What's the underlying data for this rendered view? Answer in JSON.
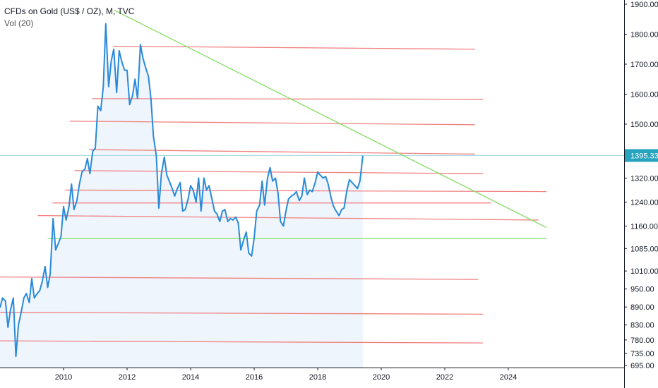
{
  "legend": {
    "title": "CFDs on Gold (US$ / OZ), M, TVC",
    "indicator": "Vol (20)"
  },
  "colors": {
    "price_line": "#2a8ad8",
    "area_fill": "#eef5fd",
    "resistance": "#f08080",
    "trend": "#86dd66",
    "last_price_line": "#9fd4e0",
    "price_tag": "#25a3bf",
    "axis": "#131722"
  },
  "chart_data": {
    "type": "line",
    "title": "CFDs on Gold (US$ / OZ), M, TVC",
    "xlabel": "",
    "ylabel": "",
    "xlim": [
      2008.0,
      2025.2
    ],
    "ylim": [
      695,
      1900
    ],
    "y_ticks": [
      695,
      735,
      780,
      830,
      890,
      950,
      1010,
      1085,
      1160,
      1240,
      1320,
      1395.33,
      1500,
      1600,
      1700,
      1800,
      1900
    ],
    "y_tick_labels": [
      "695.00",
      "735.00",
      "780.00",
      "830.00",
      "890.00",
      "950.00",
      "1010.00",
      "1085.00",
      "1160.00",
      "1240.00",
      "1320.00",
      "1395.33",
      "1500.00",
      "1600.00",
      "1700.00",
      "1800.00",
      "1900.00"
    ],
    "x_ticks": [
      2010,
      2012,
      2014,
      2016,
      2018,
      2020,
      2022,
      2024
    ],
    "x_tick_labels": [
      "2010",
      "2012",
      "2014",
      "2016",
      "2018",
      "2020",
      "2022",
      "2024"
    ],
    "last_price": 1395.33,
    "last_price_label": "1395.33",
    "grid": false,
    "series": [
      {
        "x": [
          2008.0,
          2008.08,
          2008.17,
          2008.25,
          2008.33,
          2008.42,
          2008.5,
          2008.58,
          2008.67,
          2008.75,
          2008.83,
          2008.92,
          2009.0,
          2009.08,
          2009.17,
          2009.25,
          2009.33,
          2009.42,
          2009.5,
          2009.58,
          2009.67,
          2009.75,
          2009.83,
          2009.92,
          2010.0,
          2010.08,
          2010.17,
          2010.25,
          2010.33,
          2010.42,
          2010.5,
          2010.58,
          2010.67,
          2010.75,
          2010.83,
          2010.92,
          2011.0,
          2011.08,
          2011.17,
          2011.25,
          2011.33,
          2011.42,
          2011.5,
          2011.58,
          2011.67,
          2011.75,
          2011.83,
          2011.92,
          2012.0,
          2012.08,
          2012.17,
          2012.25,
          2012.33,
          2012.42,
          2012.5,
          2012.58,
          2012.67,
          2012.75,
          2012.83,
          2012.92,
          2013.0,
          2013.08,
          2013.17,
          2013.25,
          2013.33,
          2013.42,
          2013.5,
          2013.58,
          2013.67,
          2013.75,
          2013.83,
          2013.92,
          2014.0,
          2014.08,
          2014.17,
          2014.25,
          2014.33,
          2014.42,
          2014.5,
          2014.58,
          2014.67,
          2014.75,
          2014.83,
          2014.92,
          2015.0,
          2015.08,
          2015.17,
          2015.25,
          2015.33,
          2015.42,
          2015.5,
          2015.58,
          2015.67,
          2015.75,
          2015.83,
          2015.92,
          2016.0,
          2016.08,
          2016.17,
          2016.25,
          2016.33,
          2016.42,
          2016.5,
          2016.58,
          2016.67,
          2016.75,
          2016.83,
          2016.92,
          2017.0,
          2017.08,
          2017.17,
          2017.25,
          2017.33,
          2017.42,
          2017.5,
          2017.58,
          2017.67,
          2017.75,
          2017.83,
          2017.92,
          2018.0,
          2018.08,
          2018.17,
          2018.25,
          2018.33,
          2018.42,
          2018.5,
          2018.58,
          2018.67,
          2018.75,
          2018.83,
          2018.92,
          2019.0,
          2019.08,
          2019.17,
          2019.25,
          2019.33,
          2019.42
        ],
        "values": [
          888,
          920,
          910,
          822,
          880,
          920,
          725,
          830,
          875,
          920,
          935,
          905,
          985,
          920,
          935,
          945,
          975,
          1025,
          955,
          1000,
          1185,
          1080,
          1100,
          1125,
          1225,
          1180,
          1225,
          1300,
          1215,
          1245,
          1300,
          1340,
          1350,
          1385,
          1335,
          1410,
          1420,
          1560,
          1545,
          1625,
          1835,
          1625,
          1710,
          1750,
          1605,
          1745,
          1710,
          1680,
          1680,
          1565,
          1595,
          1650,
          1585,
          1765,
          1720,
          1690,
          1660,
          1585,
          1460,
          1395,
          1220,
          1335,
          1390,
          1330,
          1310,
          1285,
          1260,
          1285,
          1305,
          1210,
          1215,
          1250,
          1295,
          1280,
          1240,
          1320,
          1210,
          1320,
          1280,
          1295,
          1250,
          1210,
          1200,
          1175,
          1210,
          1215,
          1175,
          1185,
          1180,
          1190,
          1170,
          1080,
          1115,
          1140,
          1070,
          1060,
          1120,
          1210,
          1230,
          1310,
          1230,
          1320,
          1355,
          1310,
          1320,
          1270,
          1175,
          1160,
          1210,
          1250,
          1260,
          1265,
          1275,
          1245,
          1260,
          1320,
          1265,
          1280,
          1275,
          1305,
          1340,
          1330,
          1320,
          1325,
          1300,
          1255,
          1225,
          1210,
          1195,
          1215,
          1220,
          1280,
          1315,
          1305,
          1295,
          1285,
          1310,
          1395
        ]
      }
    ],
    "horizontal_levels": [
      {
        "x_start": 2011.55,
        "x_end": 2022.95,
        "y_start": 1760,
        "y_end": 1750
      },
      {
        "x_start": 2010.9,
        "x_end": 2023.2,
        "y_start": 1585,
        "y_end": 1583
      },
      {
        "x_start": 2010.2,
        "x_end": 2022.95,
        "y_start": 1510,
        "y_end": 1498
      },
      {
        "x_start": 2010.8,
        "x_end": 2022.95,
        "y_start": 1415,
        "y_end": 1400
      },
      {
        "x_start": 2010.35,
        "x_end": 2023.2,
        "y_start": 1345,
        "y_end": 1335
      },
      {
        "x_start": 2010.05,
        "x_end": 2025.2,
        "y_start": 1280,
        "y_end": 1275
      },
      {
        "x_start": 2009.65,
        "x_end": 2023.45,
        "y_start": 1237,
        "y_end": 1237
      },
      {
        "x_start": 2009.2,
        "x_end": 2024.95,
        "y_start": 1195,
        "y_end": 1180
      },
      {
        "x_start": 2008.0,
        "x_end": 2023.05,
        "y_start": 990,
        "y_end": 982
      },
      {
        "x_start": 2008.0,
        "x_end": 2023.2,
        "y_start": 872,
        "y_end": 866
      },
      {
        "x_start": 2008.0,
        "x_end": 2023.2,
        "y_start": 777,
        "y_end": 770
      }
    ],
    "trend_lines": [
      {
        "x_start": 2011.6,
        "x_end": 2025.2,
        "y_start": 1880,
        "y_end": 1155
      },
      {
        "x_start": 2009.5,
        "x_end": 2025.2,
        "y_start": 1118,
        "y_end": 1118
      }
    ]
  }
}
